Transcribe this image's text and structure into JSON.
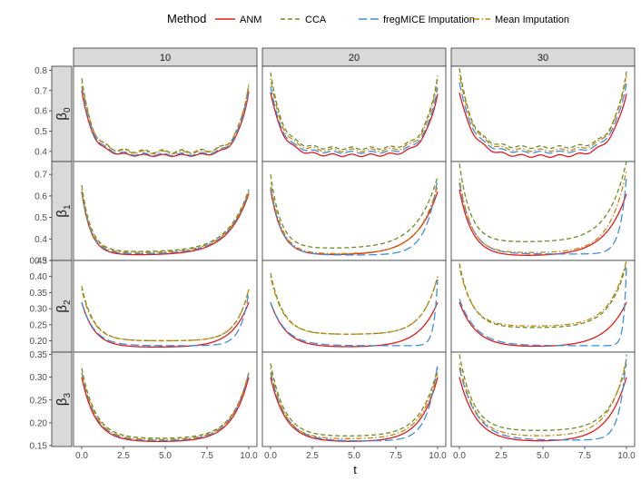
{
  "chart_data": {
    "type": "line",
    "legend": {
      "title": "Method",
      "position": "top",
      "items": [
        {
          "name": "ANM",
          "color": "#e41a1c",
          "dash": "solid"
        },
        {
          "name": "CCA",
          "color": "#6b8e23",
          "dash": "dashed"
        },
        {
          "name": "fregMICE Imputation",
          "color": "#3a8fde",
          "dash": "longdash"
        },
        {
          "name": "Mean Imputation",
          "color": "#c8860a",
          "dash": "dotdash"
        }
      ]
    },
    "xlabel": "t",
    "x_ticks": [
      "0.0",
      "2.5",
      "5.0",
      "7.5",
      "10.0"
    ],
    "xlim": [
      0,
      10
    ],
    "columns": [
      "10",
      "20",
      "30"
    ],
    "rows": [
      {
        "label": "β",
        "subscript": "0",
        "ylim": [
          0.35,
          0.82
        ],
        "y_ticks": [
          0.4,
          0.5,
          0.6,
          0.7,
          0.8
        ],
        "y_tick_labels": [
          "0.4",
          "0.5",
          "0.6",
          "0.7",
          "0.8"
        ],
        "panels": [
          {
            "column": "10",
            "series": [
              {
                "name": "ANM",
                "start": 0.7,
                "floor": 0.38,
                "end": 0.7,
                "k0": 1.6,
                "k1": 1.6,
                "wiggle": 0.005
              },
              {
                "name": "CCA",
                "start": 0.76,
                "floor": 0.4,
                "end": 0.74,
                "k0": 1.7,
                "k1": 1.7,
                "wiggle": 0.008
              },
              {
                "name": "fregMICE Imputation",
                "start": 0.72,
                "floor": 0.385,
                "end": 0.72,
                "k0": 1.6,
                "k1": 1.6,
                "wiggle": 0.006
              },
              {
                "name": "Mean Imputation",
                "start": 0.74,
                "floor": 0.395,
                "end": 0.74,
                "k0": 1.6,
                "k1": 1.6,
                "wiggle": 0.007
              }
            ]
          },
          {
            "column": "20",
            "series": [
              {
                "name": "ANM",
                "start": 0.69,
                "floor": 0.38,
                "end": 0.69,
                "k0": 1.4,
                "k1": 1.4,
                "wiggle": 0.006
              },
              {
                "name": "CCA",
                "start": 0.79,
                "floor": 0.415,
                "end": 0.78,
                "k0": 1.5,
                "k1": 1.5,
                "wiggle": 0.006
              },
              {
                "name": "fregMICE Imputation",
                "start": 0.72,
                "floor": 0.395,
                "end": 0.72,
                "k0": 1.5,
                "k1": 1.5,
                "wiggle": 0.005
              },
              {
                "name": "Mean Imputation",
                "start": 0.76,
                "floor": 0.405,
                "end": 0.76,
                "k0": 1.5,
                "k1": 1.5,
                "wiggle": 0.007
              }
            ]
          },
          {
            "column": "30",
            "series": [
              {
                "name": "ANM",
                "start": 0.69,
                "floor": 0.375,
                "end": 0.69,
                "k0": 1.2,
                "k1": 1.2,
                "wiggle": 0.006
              },
              {
                "name": "CCA",
                "start": 0.81,
                "floor": 0.42,
                "end": 0.8,
                "k0": 1.4,
                "k1": 1.4,
                "wiggle": 0.006
              },
              {
                "name": "fregMICE Imputation",
                "start": 0.74,
                "floor": 0.395,
                "end": 0.74,
                "k0": 1.3,
                "k1": 1.3,
                "wiggle": 0.005
              },
              {
                "name": "Mean Imputation",
                "start": 0.78,
                "floor": 0.405,
                "end": 0.78,
                "k0": 1.3,
                "k1": 1.3,
                "wiggle": 0.006
              }
            ]
          }
        ]
      },
      {
        "label": "β",
        "subscript": "1",
        "ylim": [
          0.3,
          0.76
        ],
        "y_ticks": [
          0.3,
          0.4,
          0.5,
          0.6,
          0.7
        ],
        "y_tick_labels": [
          "0.3",
          "0.4",
          "0.5",
          "0.6",
          "0.7"
        ],
        "panels": [
          {
            "column": "10",
            "series": [
              {
                "name": "ANM",
                "start": 0.62,
                "floor": 0.325,
                "end": 0.61,
                "k0": 1.8,
                "k1": 0.8,
                "wiggle": 0
              },
              {
                "name": "CCA",
                "start": 0.65,
                "floor": 0.34,
                "end": 0.63,
                "k0": 1.8,
                "k1": 0.8,
                "wiggle": 0
              },
              {
                "name": "fregMICE Imputation",
                "start": 0.62,
                "floor": 0.33,
                "end": 0.62,
                "k0": 1.8,
                "k1": 0.8,
                "wiggle": 0
              },
              {
                "name": "Mean Imputation",
                "start": 0.63,
                "floor": 0.335,
                "end": 0.62,
                "k0": 1.8,
                "k1": 0.8,
                "wiggle": 0
              }
            ]
          },
          {
            "column": "20",
            "series": [
              {
                "name": "ANM",
                "start": 0.63,
                "floor": 0.325,
                "end": 0.62,
                "k0": 1.5,
                "k1": 0.8,
                "wiggle": 0
              },
              {
                "name": "CCA",
                "start": 0.7,
                "floor": 0.355,
                "end": 0.69,
                "k0": 1.6,
                "k1": 0.8,
                "wiggle": 0
              },
              {
                "name": "fregMICE Imputation",
                "start": 0.64,
                "floor": 0.325,
                "end": 0.68,
                "k0": 1.5,
                "k1": 1.4,
                "wiggle": 0
              },
              {
                "name": "Mean Imputation",
                "start": 0.66,
                "floor": 0.33,
                "end": 0.65,
                "k0": 1.5,
                "k1": 0.9,
                "wiggle": 0
              }
            ]
          },
          {
            "column": "30",
            "series": [
              {
                "name": "ANM",
                "start": 0.63,
                "floor": 0.32,
                "end": 0.61,
                "k0": 1.3,
                "k1": 0.8,
                "wiggle": 0
              },
              {
                "name": "CCA",
                "start": 0.75,
                "floor": 0.385,
                "end": 0.76,
                "k0": 1.5,
                "k1": 0.9,
                "wiggle": 0
              },
              {
                "name": "fregMICE Imputation",
                "start": 0.66,
                "floor": 0.33,
                "end": 0.69,
                "k0": 1.3,
                "k1": 2.6,
                "wiggle": 0
              },
              {
                "name": "Mean Imputation",
                "start": 0.68,
                "floor": 0.335,
                "end": 0.72,
                "k0": 1.4,
                "k1": 1.0,
                "wiggle": 0
              }
            ]
          }
        ]
      },
      {
        "label": "β",
        "subscript": "2",
        "ylim": [
          0.165,
          0.45
        ],
        "y_ticks": [
          0.2,
          0.25,
          0.3,
          0.35,
          0.4,
          0.45
        ],
        "y_tick_labels": [
          "0.20",
          "0.25",
          "0.30",
          "0.35",
          "0.40",
          "0.45"
        ],
        "panels": [
          {
            "column": "10",
            "series": [
              {
                "name": "ANM",
                "start": 0.32,
                "floor": 0.18,
                "end": 0.32,
                "k0": 1.3,
                "k1": 1.0,
                "wiggle": 0
              },
              {
                "name": "CCA",
                "start": 0.37,
                "floor": 0.2,
                "end": 0.36,
                "k0": 1.4,
                "k1": 1.3,
                "wiggle": 0
              },
              {
                "name": "fregMICE Imputation",
                "start": 0.32,
                "floor": 0.185,
                "end": 0.35,
                "k0": 1.3,
                "k1": 2.0,
                "wiggle": 0
              },
              {
                "name": "Mean Imputation",
                "start": 0.36,
                "floor": 0.2,
                "end": 0.36,
                "k0": 1.4,
                "k1": 1.3,
                "wiggle": 0
              }
            ]
          },
          {
            "column": "20",
            "series": [
              {
                "name": "ANM",
                "start": 0.32,
                "floor": 0.18,
                "end": 0.32,
                "k0": 1.1,
                "k1": 0.9,
                "wiggle": 0
              },
              {
                "name": "CCA",
                "start": 0.41,
                "floor": 0.22,
                "end": 0.4,
                "k0": 1.3,
                "k1": 1.1,
                "wiggle": 0
              },
              {
                "name": "fregMICE Imputation",
                "start": 0.32,
                "floor": 0.185,
                "end": 0.39,
                "k0": 1.1,
                "k1": 4.5,
                "wiggle": 0
              },
              {
                "name": "Mean Imputation",
                "start": 0.4,
                "floor": 0.22,
                "end": 0.4,
                "k0": 1.3,
                "k1": 1.1,
                "wiggle": 0
              }
            ]
          },
          {
            "column": "30",
            "series": [
              {
                "name": "ANM",
                "start": 0.32,
                "floor": 0.18,
                "end": 0.32,
                "k0": 1.0,
                "k1": 0.8,
                "wiggle": 0
              },
              {
                "name": "CCA",
                "start": 0.44,
                "floor": 0.24,
                "end": 0.44,
                "k0": 1.3,
                "k1": 1.0,
                "wiggle": 0
              },
              {
                "name": "fregMICE Imputation",
                "start": 0.33,
                "floor": 0.185,
                "end": 0.43,
                "k0": 1.0,
                "k1": 6.0,
                "wiggle": 0
              },
              {
                "name": "Mean Imputation",
                "start": 0.43,
                "floor": 0.245,
                "end": 0.45,
                "k0": 1.3,
                "k1": 1.0,
                "wiggle": 0
              }
            ]
          }
        ]
      },
      {
        "label": "β",
        "subscript": "3",
        "ylim": [
          0.148,
          0.355
        ],
        "y_ticks": [
          0.15,
          0.2,
          0.25,
          0.3,
          0.35
        ],
        "y_tick_labels": [
          "0.15",
          "0.20",
          "0.25",
          "0.30",
          "0.35"
        ],
        "panels": [
          {
            "column": "10",
            "series": [
              {
                "name": "ANM",
                "start": 0.3,
                "floor": 0.158,
                "end": 0.3,
                "k0": 1.2,
                "k1": 1.0,
                "wiggle": 0
              },
              {
                "name": "CCA",
                "start": 0.32,
                "floor": 0.165,
                "end": 0.31,
                "k0": 1.2,
                "k1": 1.0,
                "wiggle": 0
              },
              {
                "name": "fregMICE Imputation",
                "start": 0.31,
                "floor": 0.16,
                "end": 0.31,
                "k0": 1.2,
                "k1": 1.0,
                "wiggle": 0
              },
              {
                "name": "Mean Imputation",
                "start": 0.31,
                "floor": 0.162,
                "end": 0.31,
                "k0": 1.2,
                "k1": 1.0,
                "wiggle": 0
              }
            ]
          },
          {
            "column": "20",
            "series": [
              {
                "name": "ANM",
                "start": 0.3,
                "floor": 0.158,
                "end": 0.3,
                "k0": 1.1,
                "k1": 1.0,
                "wiggle": 0
              },
              {
                "name": "CCA",
                "start": 0.33,
                "floor": 0.17,
                "end": 0.32,
                "k0": 1.2,
                "k1": 1.0,
                "wiggle": 0
              },
              {
                "name": "fregMICE Imputation",
                "start": 0.31,
                "floor": 0.16,
                "end": 0.33,
                "k0": 1.1,
                "k1": 1.6,
                "wiggle": 0
              },
              {
                "name": "Mean Imputation",
                "start": 0.32,
                "floor": 0.164,
                "end": 0.31,
                "k0": 1.2,
                "k1": 1.0,
                "wiggle": 0
              }
            ]
          },
          {
            "column": "30",
            "series": [
              {
                "name": "ANM",
                "start": 0.3,
                "floor": 0.158,
                "end": 0.3,
                "k0": 1.0,
                "k1": 0.9,
                "wiggle": 0
              },
              {
                "name": "CCA",
                "start": 0.35,
                "floor": 0.182,
                "end": 0.33,
                "k0": 1.2,
                "k1": 1.0,
                "wiggle": 0
              },
              {
                "name": "fregMICE Imputation",
                "start": 0.32,
                "floor": 0.162,
                "end": 0.35,
                "k0": 1.0,
                "k1": 2.4,
                "wiggle": 0
              },
              {
                "name": "Mean Imputation",
                "start": 0.33,
                "floor": 0.17,
                "end": 0.34,
                "k0": 1.1,
                "k1": 1.0,
                "wiggle": 0
              }
            ]
          }
        ]
      }
    ]
  }
}
